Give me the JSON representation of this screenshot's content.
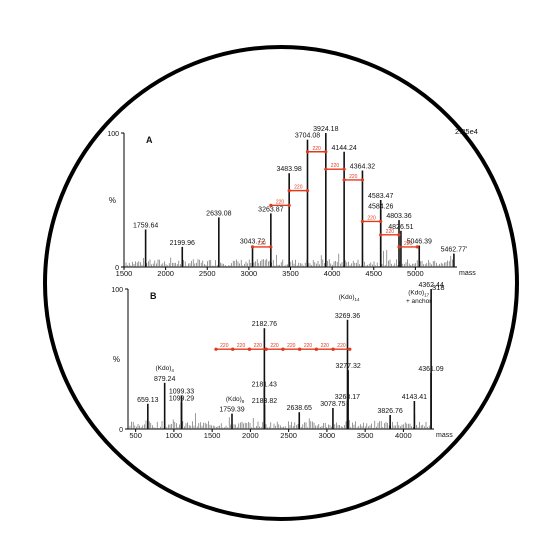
{
  "chart_data": [
    {
      "type": "bar",
      "panel_label": "A",
      "xlabel": "mass",
      "ylabel": "%",
      "xlim": [
        1500,
        5500
      ],
      "ylim": [
        0,
        100
      ],
      "xticks": [
        1500,
        2000,
        2500,
        3000,
        3500,
        4000,
        4500,
        5000
      ],
      "yticks": [
        0,
        100
      ],
      "corner_label": "2.85e4",
      "intensity_label_visible": "2.8se4",
      "peaks": [
        {
          "x": 1759.64,
          "y": 28,
          "label": "1759.64"
        },
        {
          "x": 2199.96,
          "y": 15,
          "label": "2199.96"
        },
        {
          "x": 2639.08,
          "y": 37,
          "label": "2639.08"
        },
        {
          "x": 3043.72,
          "y": 16,
          "label": "3043.72"
        },
        {
          "x": 3263.87,
          "y": 40,
          "label": "3263.87"
        },
        {
          "x": 3483.98,
          "y": 70,
          "label": "3483.98"
        },
        {
          "x": 3704.08,
          "y": 95,
          "label": "3704.08"
        },
        {
          "x": 3924.18,
          "y": 100,
          "label": "3924.18"
        },
        {
          "x": 4144.24,
          "y": 86,
          "label": "4144.24"
        },
        {
          "x": 4364.32,
          "y": 72,
          "label": "4364.32"
        },
        {
          "x": 4583.47,
          "y": 50,
          "label": "4583.47"
        },
        {
          "x": 4584.26,
          "y": 42,
          "label": "4584.26"
        },
        {
          "x": 4803.36,
          "y": 35,
          "label": "4803.36"
        },
        {
          "x": 4826.51,
          "y": 27,
          "label": "4826.51"
        },
        {
          "x": 5046.39,
          "y": 16,
          "label": "5046.39"
        },
        {
          "x": 5462.77,
          "y": 10,
          "label": "5462.77'"
        }
      ],
      "annotations": {
        "label": "220",
        "color": "#e03a1e",
        "arrows": [
          {
            "x1": 3043.72,
            "x2": 3263.87,
            "y": 15
          },
          {
            "x1": 3263.87,
            "x2": 3483.98,
            "y": 46
          },
          {
            "x1": 3483.98,
            "x2": 3704.08,
            "y": 57
          },
          {
            "x1": 3704.08,
            "x2": 3924.18,
            "y": 86
          },
          {
            "x1": 3924.18,
            "x2": 4144.24,
            "y": 73
          },
          {
            "x1": 4144.24,
            "x2": 4364.32,
            "y": 65
          },
          {
            "x1": 4364.32,
            "x2": 4583.47,
            "y": 34
          },
          {
            "x1": 4583.47,
            "x2": 4803.36,
            "y": 24
          },
          {
            "x1": 4803.36,
            "x2": 5023.0,
            "y": 15
          }
        ]
      }
    },
    {
      "type": "bar",
      "panel_label": "B",
      "xlabel": "mass",
      "ylabel": "%",
      "xlim": [
        400,
        4400
      ],
      "ylim": [
        0,
        100
      ],
      "xticks": [
        500,
        1000,
        1500,
        2000,
        2500,
        3000,
        3500,
        4000
      ],
      "yticks": [
        0,
        100
      ],
      "corner_label": "318",
      "peaks": [
        {
          "x": 659.13,
          "y": 18,
          "label": "659.13"
        },
        {
          "x": 879.24,
          "y": 33,
          "label": "879.24"
        },
        {
          "x": 1099.33,
          "y": 24,
          "label": "1099.33"
        },
        {
          "x": 1099.29,
          "y": 19,
          "label": "1099.29"
        },
        {
          "x": 1759.39,
          "y": 11,
          "label": "1759.39"
        },
        {
          "x": 2182.76,
          "y": 72,
          "label": "2182.76"
        },
        {
          "x": 2181.43,
          "y": 29,
          "label": "2181.43"
        },
        {
          "x": 2183.82,
          "y": 17,
          "label": "2183.82"
        },
        {
          "x": 2638.65,
          "y": 12,
          "label": "2638.65"
        },
        {
          "x": 3078.75,
          "y": 15,
          "label": "3078.75"
        },
        {
          "x": 3268.17,
          "y": 20,
          "label": "3268.17"
        },
        {
          "x": 3269.36,
          "y": 78,
          "label": "3269.36"
        },
        {
          "x": 3277.32,
          "y": 42,
          "label": "3277.32"
        },
        {
          "x": 3826.76,
          "y": 10,
          "label": "3826.76"
        },
        {
          "x": 4143.41,
          "y": 20,
          "label": "4143.41"
        },
        {
          "x": 4361.09,
          "y": 40,
          "label": "4361.09"
        },
        {
          "x": 4362.44,
          "y": 100,
          "label": "4362.44"
        }
      ],
      "annotation_labels": [
        {
          "text": "(Kdo)",
          "sub": "4",
          "x": 880,
          "y": 42
        },
        {
          "text": "(Kdo)",
          "sub": "8",
          "x": 1800,
          "y": 20
        },
        {
          "text": "(Kdo)",
          "sub": "14",
          "x": 3290,
          "y": 93
        },
        {
          "text": "(Kdo)",
          "sub": "17",
          "x": 4200,
          "y": 96
        },
        {
          "text": "+ anchor",
          "sub": "",
          "x": 4200,
          "y": 90
        }
      ],
      "annotations": {
        "label": "220",
        "color": "#e03a1e",
        "row_y": 57,
        "x_start": 1550,
        "x_end": 3300,
        "count": 8
      }
    }
  ]
}
